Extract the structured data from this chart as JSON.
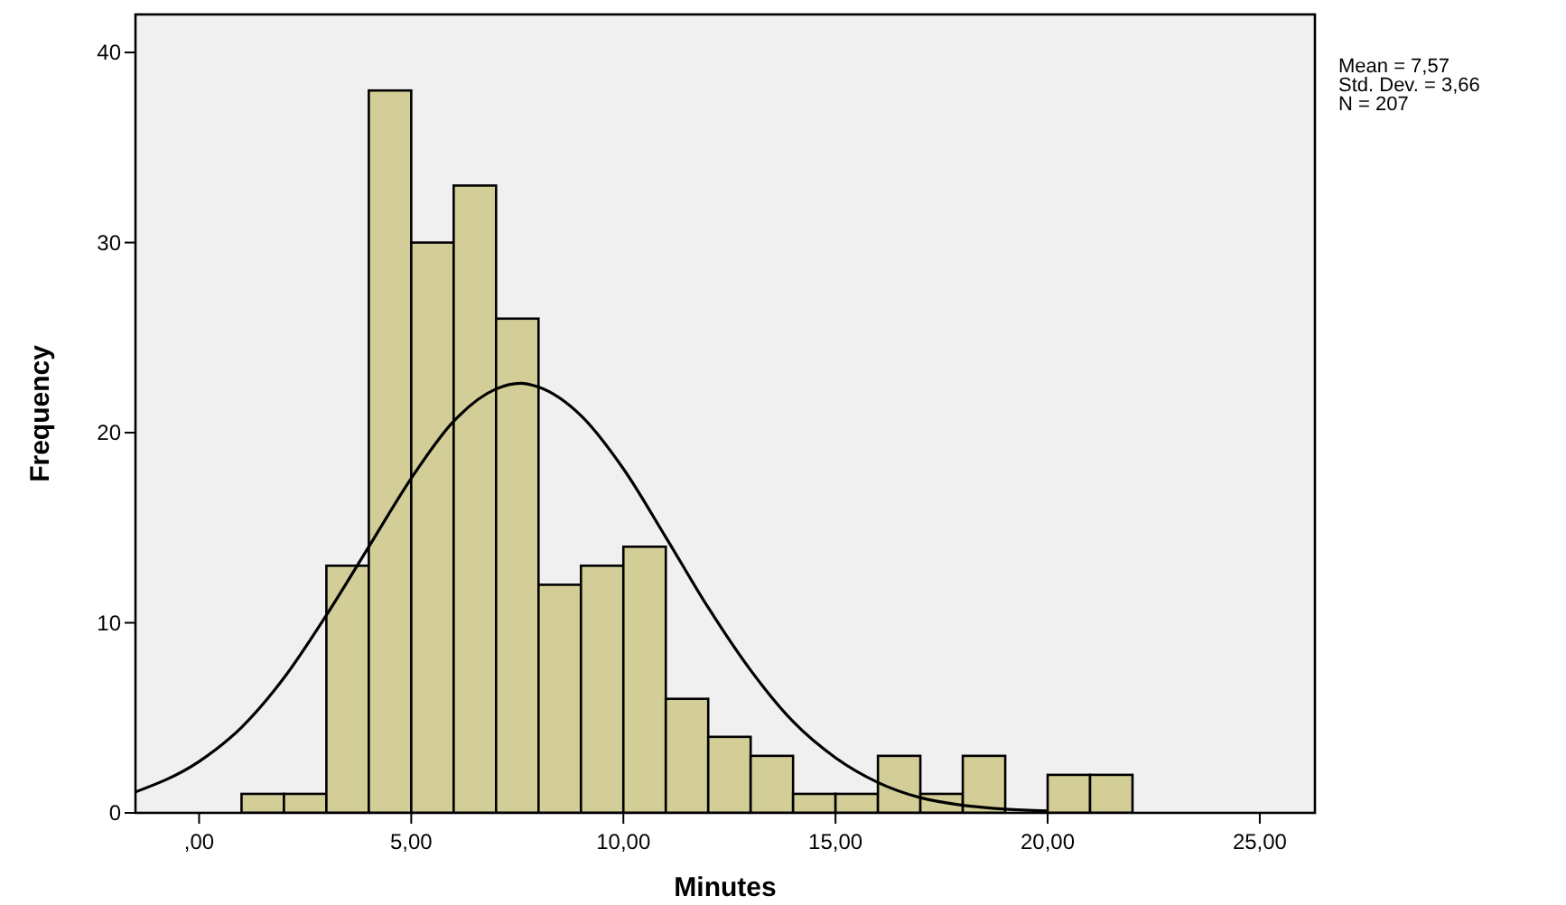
{
  "chart_data": {
    "type": "histogram",
    "xlabel": "Minutes",
    "ylabel": "Frequency",
    "bins": [
      1,
      2,
      3,
      4,
      5,
      6,
      7,
      8,
      9,
      10,
      11,
      12,
      13,
      14,
      15,
      16,
      17,
      18,
      19,
      20,
      21,
      22
    ],
    "values": [
      1,
      1,
      13,
      38,
      30,
      33,
      26,
      12,
      13,
      14,
      6,
      4,
      3,
      1,
      1,
      3,
      1,
      3,
      0,
      2,
      2
    ],
    "color": "#d3ce97",
    "series": [
      {
        "type": "line",
        "color": "#000000",
        "x": [
          -1.5,
          0,
          1,
          2,
          3,
          4,
          5,
          6,
          7,
          7.57,
          8,
          9,
          10,
          11,
          12,
          13,
          14,
          15,
          16,
          17,
          18,
          19,
          20
        ],
        "values": [
          1.1,
          2.7,
          4.5,
          7.1,
          10.4,
          14,
          17.6,
          20.6,
          22.3,
          22.6,
          22.4,
          20.9,
          18.1,
          14.5,
          10.8,
          7.5,
          4.8,
          2.9,
          1.6,
          0.8,
          0.4,
          0.2,
          0.1
        ]
      }
    ],
    "xlim": [
      -1.5,
      26.3
    ],
    "ylim": [
      0,
      42
    ],
    "xticks": [
      {
        "value": 0,
        "label": ",00"
      },
      {
        "value": 5,
        "label": "5,00"
      },
      {
        "value": 10,
        "label": "10,00"
      },
      {
        "value": 15,
        "label": "15,00"
      },
      {
        "value": 20,
        "label": "20,00"
      },
      {
        "value": 25,
        "label": "25,00"
      }
    ],
    "yticks": [
      0,
      10,
      20,
      30,
      40
    ],
    "grid": false,
    "annotations": [
      "Mean = 7,57",
      "Std. Dev. = 3,66",
      "N = 207"
    ]
  }
}
